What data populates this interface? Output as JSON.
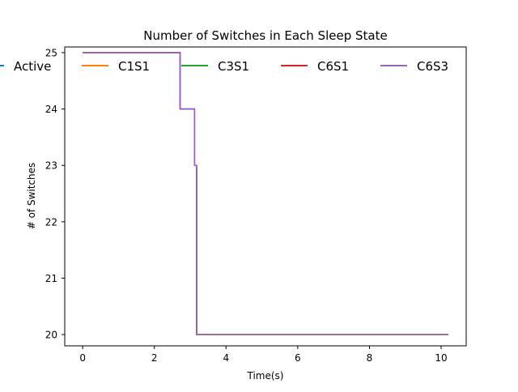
{
  "chart_data": {
    "type": "line",
    "title": "Number of Switches in Each Sleep State",
    "xlabel": "Time(s)",
    "ylabel": "# of Switches",
    "xlim": [
      -0.5,
      10.7
    ],
    "ylim": [
      19.8,
      25.1
    ],
    "xticks": [
      0,
      2,
      4,
      6,
      8,
      10
    ],
    "xtick_labels": [
      "0",
      "2",
      "4",
      "6",
      "8",
      "10"
    ],
    "yticks": [
      20,
      21,
      22,
      23,
      24,
      25
    ],
    "ytick_labels": [
      "20",
      "21",
      "22",
      "23",
      "24",
      "25"
    ],
    "grid": false,
    "legend_placement": "top, horizontal",
    "step_points": [
      [
        0,
        25
      ],
      [
        2.72,
        25
      ],
      [
        2.72,
        24
      ],
      [
        3.12,
        24
      ],
      [
        3.12,
        23
      ],
      [
        3.18,
        23
      ],
      [
        3.18,
        20
      ],
      [
        10.2,
        20
      ]
    ],
    "series": [
      {
        "name": "Active",
        "color": "#1f77b4"
      },
      {
        "name": "C1S1",
        "color": "#ff7f0e"
      },
      {
        "name": "C3S1",
        "color": "#2ca02c"
      },
      {
        "name": "C6S1",
        "color": "#d62728"
      },
      {
        "name": "C6S3",
        "color": "#9467bd"
      }
    ]
  }
}
